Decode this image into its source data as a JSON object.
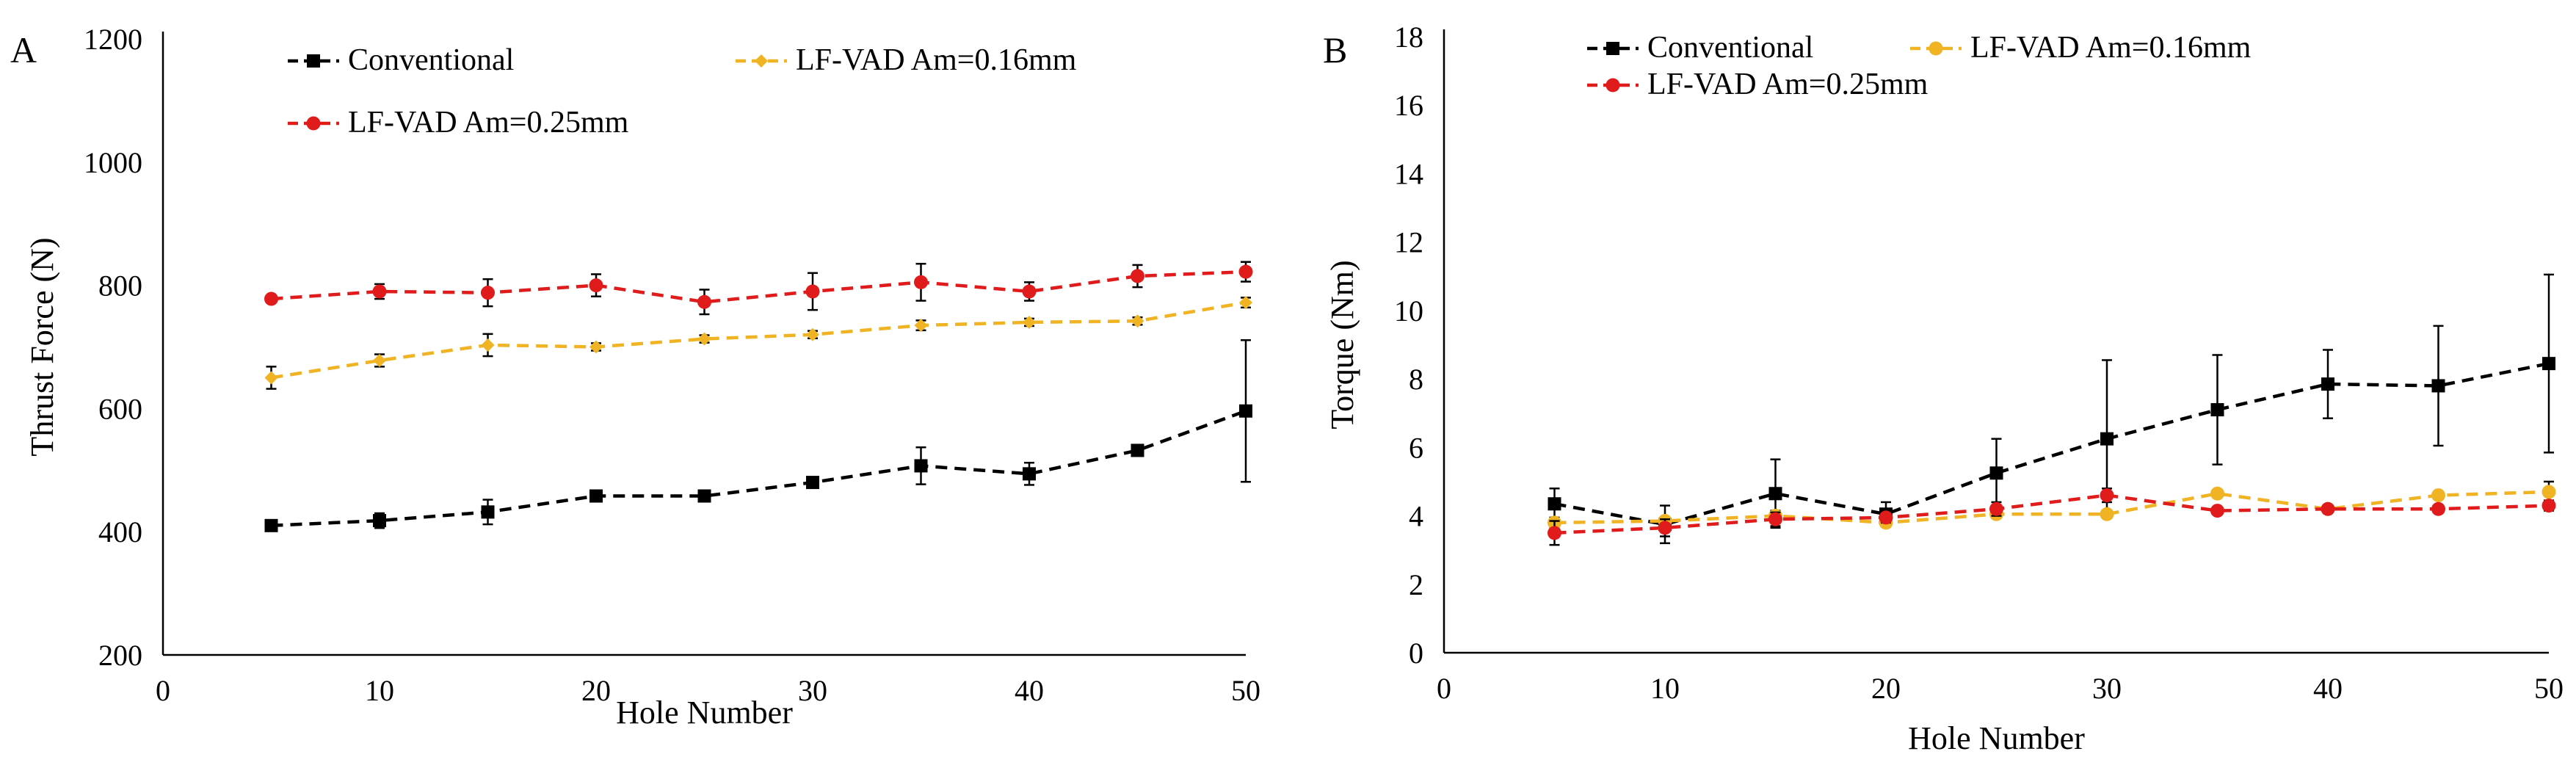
{
  "chart_data": [
    {
      "panel_label": "A",
      "type": "line",
      "xlabel": "Hole Number",
      "ylabel": "Thrust  Force (N)",
      "xlim": [
        0,
        50
      ],
      "ylim": [
        200,
        1200
      ],
      "xticks": [
        0,
        10,
        20,
        30,
        40,
        50
      ],
      "yticks": [
        200,
        400,
        600,
        800,
        1000,
        1200
      ],
      "grid": false,
      "x": [
        5,
        10,
        15,
        20,
        25,
        30,
        35,
        40,
        45,
        50
      ],
      "series": [
        {
          "name": "Conventional",
          "color": "#000000",
          "marker": "square",
          "values": [
            410,
            418,
            432,
            458,
            458,
            480,
            507,
            494,
            532,
            596
          ],
          "errors": [
            5,
            12,
            20,
            8,
            6,
            8,
            30,
            18,
            6,
            115
          ]
        },
        {
          "name": "LF-VAD Am=0.16mm",
          "color": "#f0b323",
          "marker": "diamond",
          "values": [
            650,
            678,
            703,
            700,
            713,
            720,
            735,
            740,
            742,
            772
          ],
          "errors": [
            18,
            10,
            18,
            6,
            6,
            6,
            8,
            6,
            6,
            8
          ]
        },
        {
          "name": "LF-VAD Am=0.25mm",
          "color": "#e01b1b",
          "marker": "circle",
          "values": [
            778,
            790,
            788,
            800,
            773,
            790,
            805,
            790,
            815,
            822
          ],
          "errors": [
            6,
            12,
            22,
            18,
            20,
            30,
            30,
            15,
            18,
            16
          ]
        }
      ]
    },
    {
      "panel_label": "B",
      "type": "line",
      "xlabel": "Hole Number",
      "ylabel": "Torque (Nm)",
      "xlim": [
        0,
        50
      ],
      "ylim": [
        0,
        18
      ],
      "xticks": [
        0,
        10,
        20,
        30,
        40,
        50
      ],
      "yticks": [
        0,
        2,
        4,
        6,
        8,
        10,
        12,
        14,
        16,
        18
      ],
      "grid": false,
      "x": [
        5,
        10,
        15,
        20,
        25,
        30,
        35,
        40,
        45,
        50
      ],
      "series": [
        {
          "name": "Conventional",
          "color": "#000000",
          "marker": "square",
          "values": [
            4.35,
            3.75,
            4.65,
            4.05,
            5.25,
            6.25,
            7.1,
            7.85,
            7.8,
            8.45
          ],
          "errors": [
            0.45,
            0.55,
            1.0,
            0.35,
            1.0,
            2.3,
            1.6,
            1.0,
            1.75,
            2.6
          ]
        },
        {
          "name": "LF-VAD Am=0.16mm",
          "color": "#f0b323",
          "marker": "circle",
          "values": [
            3.8,
            3.85,
            4.0,
            3.8,
            4.05,
            4.05,
            4.65,
            4.2,
            4.6,
            4.7
          ],
          "errors": [
            0.15,
            0.1,
            0.15,
            0.1,
            0.1,
            0.1,
            0.1,
            0.1,
            0.1,
            0.3
          ]
        },
        {
          "name": "LF-VAD Am=0.25mm",
          "color": "#e01b1b",
          "marker": "circle",
          "values": [
            3.5,
            3.65,
            3.9,
            3.95,
            4.2,
            4.6,
            4.15,
            4.2,
            4.2,
            4.3
          ],
          "errors": [
            0.35,
            0.25,
            0.2,
            0.15,
            0.2,
            0.2,
            0.1,
            0.1,
            0.1,
            0.15
          ]
        }
      ]
    }
  ]
}
